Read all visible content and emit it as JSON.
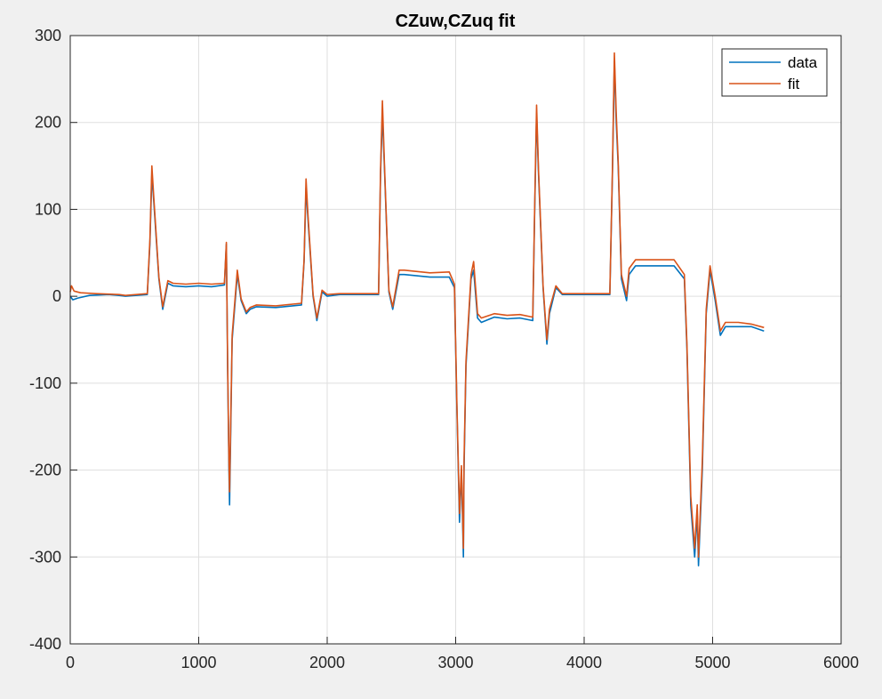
{
  "chart_data": {
    "type": "line",
    "title": "CZuw,CZuq fit",
    "xlabel": "",
    "ylabel": "",
    "xlim": [
      0,
      6000
    ],
    "ylim": [
      -400,
      300
    ],
    "xticks": [
      0,
      1000,
      2000,
      3000,
      4000,
      5000,
      6000
    ],
    "yticks": [
      -400,
      -300,
      -200,
      -100,
      0,
      100,
      200,
      300
    ],
    "grid": true,
    "legend_position": "top-right",
    "series": [
      {
        "name": "data",
        "color": "#0072BD",
        "x": [
          0,
          20,
          60,
          150,
          300,
          380,
          430,
          600,
          620,
          635,
          650,
          690,
          720,
          760,
          800,
          900,
          1000,
          1100,
          1200,
          1215,
          1225,
          1235,
          1240,
          1260,
          1300,
          1330,
          1370,
          1400,
          1450,
          1600,
          1800,
          1820,
          1835,
          1850,
          1890,
          1920,
          1960,
          2000,
          2100,
          2200,
          2300,
          2400,
          2415,
          2430,
          2445,
          2480,
          2510,
          2560,
          2600,
          2800,
          2950,
          2990,
          3010,
          3030,
          3045,
          3060,
          3065,
          3080,
          3120,
          3140,
          3170,
          3200,
          3300,
          3400,
          3500,
          3600,
          3615,
          3630,
          3645,
          3680,
          3710,
          3730,
          3780,
          3830,
          4000,
          4200,
          4220,
          4235,
          4250,
          4265,
          4290,
          4330,
          4350,
          4400,
          4500,
          4600,
          4700,
          4780,
          4800,
          4830,
          4860,
          4880,
          4890,
          4920,
          4950,
          4980,
          5020,
          5060,
          5100,
          5200,
          5300,
          5400
        ],
        "y": [
          0,
          -4,
          -2,
          1,
          2,
          1,
          0,
          2,
          60,
          140,
          110,
          20,
          -15,
          15,
          12,
          11,
          12,
          11,
          13,
          60,
          -80,
          -200,
          -240,
          -50,
          25,
          -5,
          -20,
          -15,
          -12,
          -13,
          -10,
          40,
          125,
          90,
          0,
          -28,
          5,
          0,
          2,
          2,
          2,
          2,
          140,
          210,
          150,
          5,
          -15,
          25,
          25,
          22,
          22,
          10,
          -130,
          -260,
          -200,
          -300,
          -200,
          -80,
          20,
          30,
          -25,
          -30,
          -24,
          -26,
          -25,
          -28,
          100,
          210,
          140,
          10,
          -55,
          -20,
          10,
          2,
          2,
          2,
          140,
          270,
          200,
          150,
          20,
          -5,
          25,
          35,
          35,
          35,
          35,
          20,
          -60,
          -240,
          -300,
          -250,
          -310,
          -200,
          -20,
          30,
          -5,
          -45,
          -35,
          -35,
          -35,
          -40
        ]
      },
      {
        "name": "fit",
        "color": "#D95319",
        "x": [
          0,
          10,
          30,
          80,
          200,
          380,
          430,
          600,
          620,
          635,
          650,
          690,
          720,
          760,
          800,
          900,
          1000,
          1100,
          1200,
          1215,
          1225,
          1235,
          1240,
          1260,
          1300,
          1330,
          1370,
          1400,
          1450,
          1600,
          1800,
          1820,
          1835,
          1850,
          1890,
          1920,
          1960,
          2000,
          2100,
          2200,
          2300,
          2400,
          2415,
          2430,
          2445,
          2480,
          2510,
          2560,
          2600,
          2800,
          2950,
          2990,
          3010,
          3030,
          3045,
          3060,
          3065,
          3080,
          3120,
          3140,
          3170,
          3200,
          3300,
          3400,
          3500,
          3600,
          3615,
          3630,
          3645,
          3680,
          3710,
          3730,
          3780,
          3830,
          4000,
          4200,
          4220,
          4235,
          4250,
          4265,
          4290,
          4330,
          4350,
          4400,
          4500,
          4600,
          4700,
          4780,
          4800,
          4830,
          4860,
          4880,
          4890,
          4920,
          4950,
          4980,
          5020,
          5060,
          5100,
          5200,
          5300,
          5400
        ],
        "y": [
          5,
          12,
          6,
          4,
          3,
          2,
          1,
          3,
          65,
          150,
          115,
          22,
          -12,
          18,
          15,
          14,
          15,
          14,
          15,
          62,
          -75,
          -190,
          -225,
          -45,
          30,
          -3,
          -18,
          -13,
          -10,
          -11,
          -8,
          42,
          135,
          95,
          2,
          -25,
          7,
          2,
          3,
          3,
          3,
          3,
          145,
          225,
          155,
          7,
          -12,
          30,
          30,
          27,
          28,
          14,
          -125,
          -250,
          -195,
          -290,
          -190,
          -75,
          25,
          40,
          -20,
          -25,
          -20,
          -22,
          -21,
          -24,
          105,
          220,
          145,
          12,
          -50,
          -15,
          12,
          3,
          3,
          3,
          145,
          280,
          210,
          155,
          25,
          0,
          32,
          42,
          42,
          42,
          42,
          25,
          -55,
          -230,
          -290,
          -240,
          -300,
          -190,
          -15,
          35,
          0,
          -40,
          -30,
          -30,
          -32,
          -36
        ]
      }
    ]
  }
}
